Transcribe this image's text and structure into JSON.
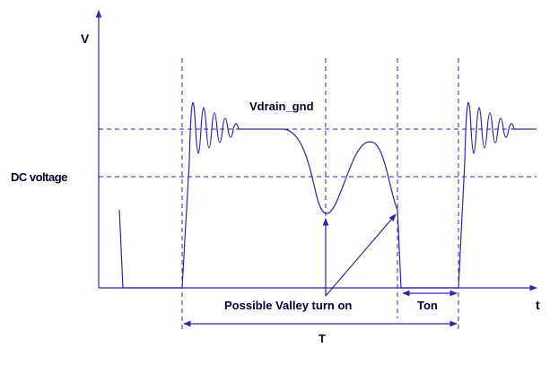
{
  "labels": {
    "v_axis": "V",
    "t_axis": "t",
    "signal": "Vdrain_gnd",
    "dc_voltage": "DC voltage",
    "valley": "Possible Valley turn on",
    "ton": "Ton",
    "period": "T"
  },
  "colors": {
    "line": "#2a2aa8",
    "text": "#000033"
  }
}
